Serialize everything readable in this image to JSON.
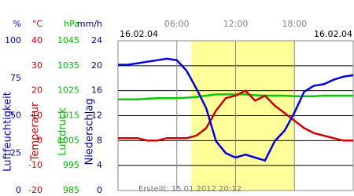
{
  "chart_data": {
    "type": "line",
    "start_label": "16.02.04",
    "end_label": "16.02.04",
    "footer": "Erstellt: 15.01.2012 20:12",
    "xlim": [
      0,
      24
    ],
    "xticks": [
      {
        "value": 6,
        "label": "06:00"
      },
      {
        "value": 12,
        "label": "12:00"
      },
      {
        "value": 18,
        "label": "18:00"
      }
    ],
    "daylight": [
      7.5,
      18
    ],
    "daylight_color": "#ffff99",
    "grid": true,
    "axes": [
      {
        "unit": "%",
        "title": "Luftfeuchtigkeit",
        "color": "#0000cc",
        "lim": [
          0,
          100
        ],
        "ticks": [
          100,
          75,
          50,
          25,
          0
        ]
      },
      {
        "unit": "°C",
        "title": "Temperatur",
        "color": "#cc0000",
        "lim": [
          -20,
          40
        ],
        "ticks": [
          40,
          30,
          20,
          10,
          0,
          -10,
          -20
        ]
      },
      {
        "unit": "hPa",
        "title": "Luftdruck",
        "color": "#00bb00",
        "lim": [
          985,
          1045
        ],
        "ticks": [
          1045,
          1035,
          1025,
          1015,
          1005,
          995,
          985
        ]
      },
      {
        "unit": "mm/h",
        "title": "Niederschlag",
        "color": "#000080",
        "lim": [
          0,
          24
        ],
        "ticks": [
          24,
          20,
          16,
          12,
          8,
          4,
          0
        ]
      }
    ],
    "x": [
      0,
      1,
      2,
      3,
      4,
      5,
      6,
      7,
      8,
      9,
      10,
      11,
      12,
      13,
      14,
      15,
      16,
      17,
      18,
      19,
      20,
      21,
      22,
      23,
      24
    ],
    "series": [
      {
        "name": "Luftdruck",
        "color": "#00cc00",
        "axis": 2,
        "values": [
          1021.5,
          1021.5,
          1021.5,
          1021.8,
          1022,
          1022,
          1022,
          1022.2,
          1022.5,
          1023,
          1023.5,
          1023.5,
          1023.5,
          1023.5,
          1023.2,
          1023,
          1023,
          1023,
          1022.8,
          1022.8,
          1022.8,
          1023,
          1023,
          1023,
          1023
        ]
      },
      {
        "name": "Temperatur",
        "color": "#cc0000",
        "axis": 1,
        "values": [
          1,
          1,
          1,
          0,
          0,
          1,
          1,
          1,
          2,
          5,
          12,
          17,
          18,
          20,
          16,
          18,
          14,
          11,
          8,
          5,
          3,
          2,
          1,
          0,
          0
        ]
      },
      {
        "name": "Luftfeuchtigkeit",
        "color": "#0000dd",
        "axis": 0,
        "values": [
          84,
          84,
          85,
          86,
          87,
          88,
          87,
          80,
          68,
          55,
          33,
          25,
          22,
          24,
          22,
          20,
          33,
          40,
          52,
          66,
          70,
          71,
          74,
          76,
          77
        ]
      }
    ]
  }
}
